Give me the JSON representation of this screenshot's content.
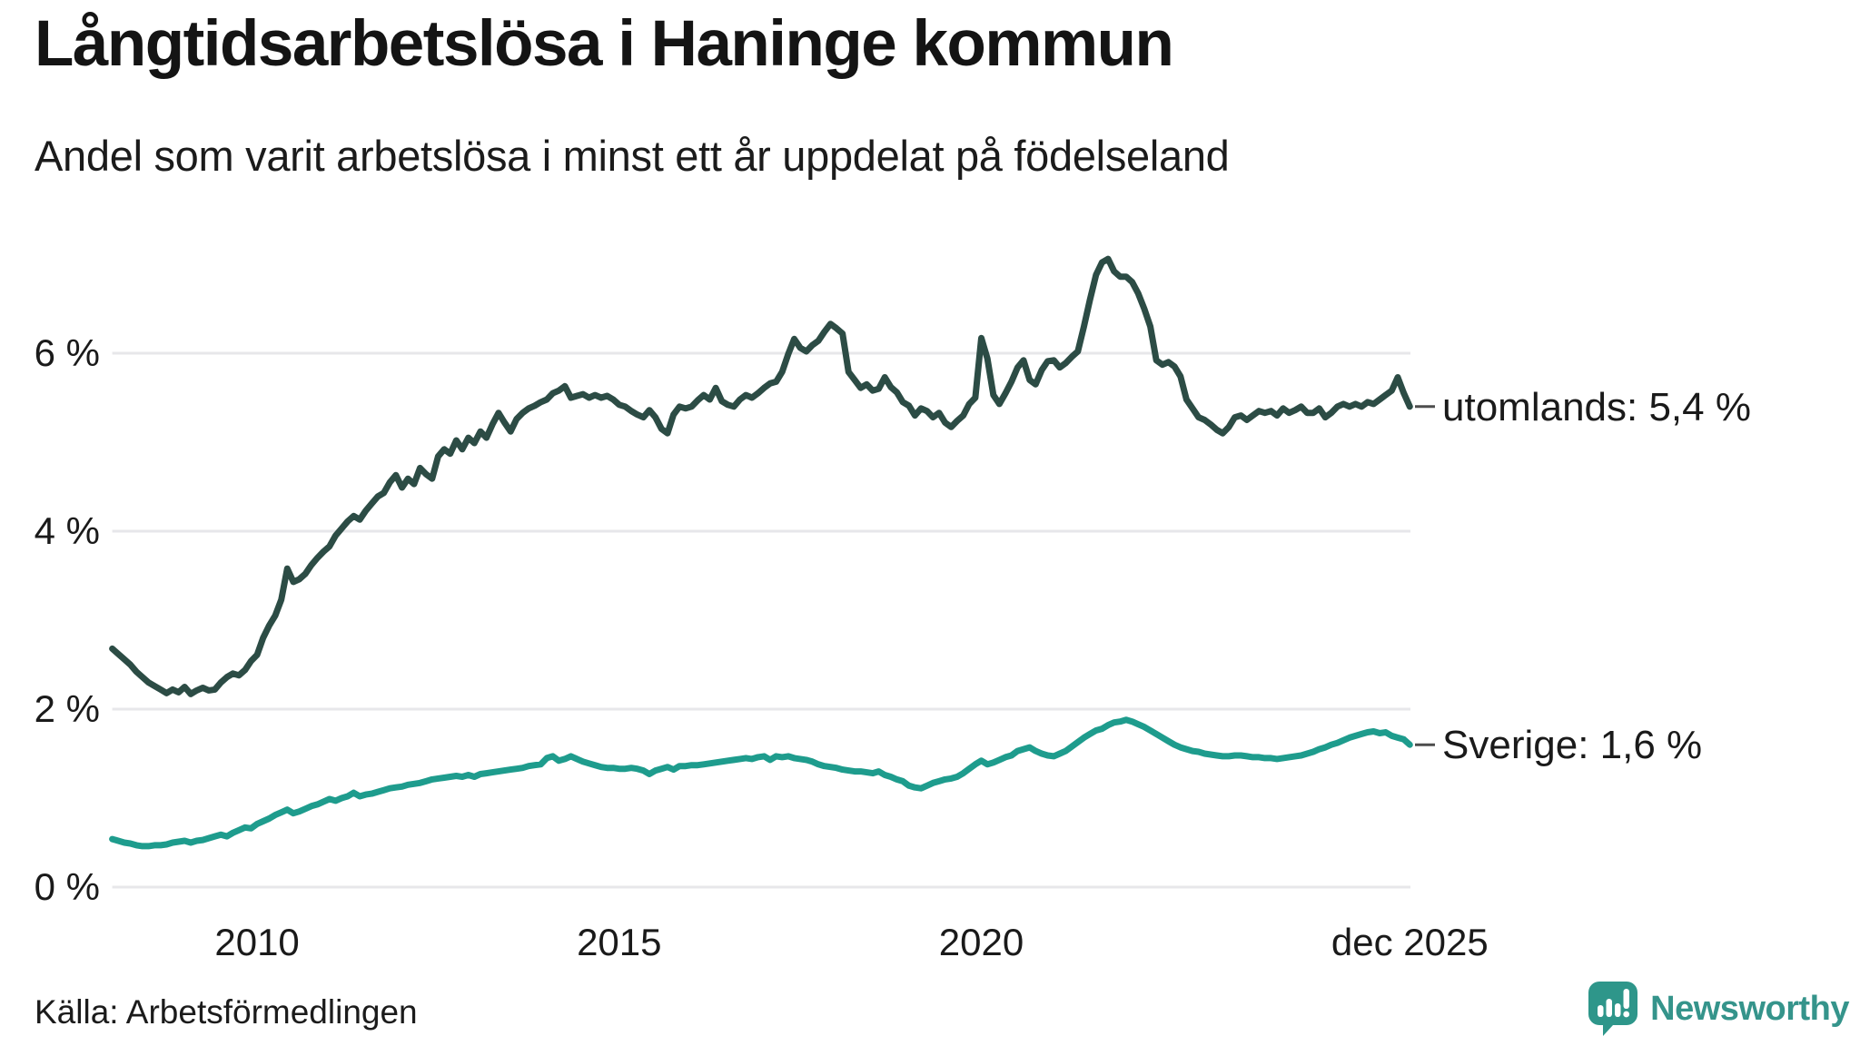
{
  "header": {
    "title": "Långtidsarbetslösa i Haninge kommun",
    "subtitle": "Andel som varit arbetslösa i minst ett år uppdelat på födelseland"
  },
  "footer": {
    "source": "Källa: Arbetsförmedlingen",
    "logo_text": "Newsworthy",
    "logo_icon": "newsworthy-bar-chart-speech-bubble-icon",
    "logo_icon_color": "#2e968a",
    "logo_text_color": "#35948b"
  },
  "chart_data": {
    "type": "line",
    "title": "Långtidsarbetslösa i Haninge kommun",
    "subtitle": "Andel som varit arbetslösa i minst ett år uppdelat på födelseland",
    "x_start": "2008-01",
    "x_end": "2025-12",
    "x_frequency": "monthly",
    "ylim": [
      0,
      7.4
    ],
    "grid": "horizontal",
    "background": "#ffffff",
    "gridline_color": "#e7e7ea",
    "y_ticks": [
      {
        "label": "0 %",
        "value": 0
      },
      {
        "label": "2 %",
        "value": 2
      },
      {
        "label": "4 %",
        "value": 4
      },
      {
        "label": "6 %",
        "value": 6
      }
    ],
    "x_ticks": [
      {
        "label": "2010",
        "month_index": 24
      },
      {
        "label": "2015",
        "month_index": 84
      },
      {
        "label": "2020",
        "month_index": 144
      },
      {
        "label": "dec 2025",
        "month_index": 215
      }
    ],
    "series": [
      {
        "name": "utomlands",
        "end_label": "utomlands: 5,4 %",
        "last_value_text": "5,4 %",
        "color": "#2c4c45",
        "values": [
          2.68,
          2.62,
          2.56,
          2.5,
          2.42,
          2.36,
          2.3,
          2.26,
          2.22,
          2.18,
          2.22,
          2.19,
          2.25,
          2.17,
          2.21,
          2.24,
          2.21,
          2.22,
          2.3,
          2.36,
          2.4,
          2.38,
          2.44,
          2.54,
          2.61,
          2.8,
          2.94,
          3.05,
          3.23,
          3.58,
          3.43,
          3.46,
          3.52,
          3.62,
          3.7,
          3.77,
          3.83,
          3.95,
          4.03,
          4.11,
          4.17,
          4.13,
          4.23,
          4.31,
          4.39,
          4.43,
          4.55,
          4.63,
          4.49,
          4.59,
          4.53,
          4.71,
          4.64,
          4.59,
          4.84,
          4.92,
          4.87,
          5.02,
          4.92,
          5.05,
          4.99,
          5.12,
          5.05,
          5.2,
          5.33,
          5.22,
          5.12,
          5.26,
          5.33,
          5.38,
          5.41,
          5.45,
          5.48,
          5.55,
          5.58,
          5.63,
          5.5,
          5.52,
          5.54,
          5.5,
          5.53,
          5.5,
          5.52,
          5.48,
          5.42,
          5.4,
          5.35,
          5.31,
          5.28,
          5.36,
          5.28,
          5.15,
          5.1,
          5.31,
          5.4,
          5.38,
          5.4,
          5.47,
          5.53,
          5.48,
          5.61,
          5.46,
          5.42,
          5.4,
          5.48,
          5.53,
          5.5,
          5.55,
          5.61,
          5.66,
          5.68,
          5.79,
          5.99,
          6.16,
          6.06,
          6.02,
          6.09,
          6.14,
          6.24,
          6.33,
          6.28,
          6.22,
          5.79,
          5.7,
          5.61,
          5.65,
          5.58,
          5.6,
          5.73,
          5.62,
          5.56,
          5.45,
          5.41,
          5.3,
          5.38,
          5.35,
          5.28,
          5.33,
          5.22,
          5.17,
          5.24,
          5.3,
          5.43,
          5.5,
          6.17,
          5.94,
          5.53,
          5.43,
          5.55,
          5.68,
          5.84,
          5.92,
          5.7,
          5.65,
          5.81,
          5.91,
          5.92,
          5.84,
          5.89,
          5.96,
          6.02,
          6.3,
          6.6,
          6.88,
          7.02,
          7.06,
          6.92,
          6.86,
          6.86,
          6.8,
          6.67,
          6.5,
          6.3,
          5.92,
          5.87,
          5.9,
          5.85,
          5.74,
          5.48,
          5.38,
          5.28,
          5.25,
          5.2,
          5.14,
          5.1,
          5.17,
          5.28,
          5.3,
          5.25,
          5.3,
          5.35,
          5.33,
          5.35,
          5.3,
          5.38,
          5.33,
          5.36,
          5.4,
          5.33,
          5.33,
          5.38,
          5.28,
          5.33,
          5.4,
          5.43,
          5.4,
          5.43,
          5.4,
          5.45,
          5.43,
          5.48,
          5.53,
          5.58,
          5.73,
          5.55,
          5.4
        ]
      },
      {
        "name": "Sverige",
        "end_label": "Sverige: 1,6 %",
        "last_value_text": "1,6 %",
        "color": "#1e9c8d",
        "values": [
          0.54,
          0.52,
          0.5,
          0.49,
          0.47,
          0.46,
          0.46,
          0.47,
          0.47,
          0.48,
          0.5,
          0.51,
          0.52,
          0.5,
          0.52,
          0.53,
          0.55,
          0.57,
          0.59,
          0.57,
          0.61,
          0.64,
          0.67,
          0.66,
          0.71,
          0.74,
          0.77,
          0.81,
          0.84,
          0.87,
          0.83,
          0.85,
          0.88,
          0.91,
          0.93,
          0.96,
          0.99,
          0.97,
          1.0,
          1.02,
          1.06,
          1.02,
          1.04,
          1.05,
          1.07,
          1.09,
          1.11,
          1.12,
          1.13,
          1.15,
          1.16,
          1.17,
          1.19,
          1.21,
          1.22,
          1.23,
          1.24,
          1.25,
          1.24,
          1.26,
          1.24,
          1.27,
          1.28,
          1.29,
          1.3,
          1.31,
          1.32,
          1.33,
          1.34,
          1.36,
          1.37,
          1.38,
          1.45,
          1.47,
          1.42,
          1.44,
          1.47,
          1.44,
          1.41,
          1.39,
          1.37,
          1.35,
          1.34,
          1.34,
          1.33,
          1.33,
          1.34,
          1.33,
          1.31,
          1.27,
          1.31,
          1.33,
          1.35,
          1.32,
          1.36,
          1.36,
          1.37,
          1.37,
          1.38,
          1.39,
          1.4,
          1.41,
          1.42,
          1.43,
          1.44,
          1.45,
          1.44,
          1.46,
          1.47,
          1.43,
          1.47,
          1.46,
          1.47,
          1.45,
          1.44,
          1.43,
          1.41,
          1.38,
          1.36,
          1.35,
          1.34,
          1.32,
          1.31,
          1.3,
          1.3,
          1.29,
          1.28,
          1.3,
          1.26,
          1.24,
          1.21,
          1.19,
          1.14,
          1.12,
          1.11,
          1.14,
          1.17,
          1.19,
          1.21,
          1.22,
          1.24,
          1.28,
          1.33,
          1.38,
          1.42,
          1.38,
          1.4,
          1.43,
          1.46,
          1.48,
          1.53,
          1.55,
          1.57,
          1.53,
          1.5,
          1.48,
          1.47,
          1.5,
          1.53,
          1.58,
          1.63,
          1.68,
          1.72,
          1.76,
          1.78,
          1.82,
          1.85,
          1.86,
          1.88,
          1.86,
          1.83,
          1.8,
          1.76,
          1.72,
          1.68,
          1.64,
          1.6,
          1.57,
          1.55,
          1.53,
          1.52,
          1.5,
          1.49,
          1.48,
          1.47,
          1.47,
          1.48,
          1.48,
          1.47,
          1.46,
          1.46,
          1.45,
          1.45,
          1.44,
          1.45,
          1.46,
          1.47,
          1.48,
          1.5,
          1.52,
          1.55,
          1.57,
          1.6,
          1.62,
          1.65,
          1.68,
          1.7,
          1.72,
          1.74,
          1.75,
          1.73,
          1.74,
          1.7,
          1.68,
          1.66,
          1.6
        ]
      }
    ]
  }
}
